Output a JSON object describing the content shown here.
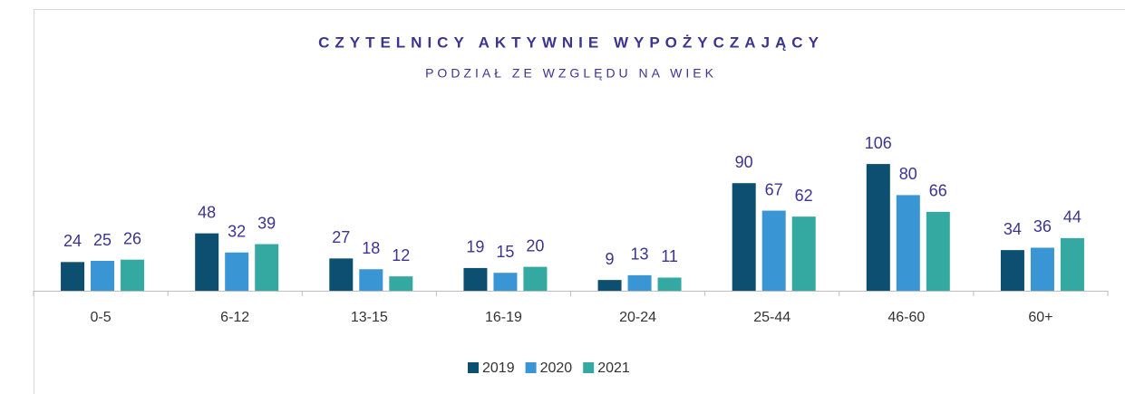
{
  "chart_data": {
    "type": "bar",
    "title": "CZYTELNICY AKTYWNIE WYPOŻYCZAJĄCY",
    "subtitle": "PODZIAŁ ZE WZGLĘDU NA WIEK",
    "categories": [
      "0-5",
      "6-12",
      "13-15",
      "16-19",
      "20-24",
      "25-44",
      "46-60",
      "60+"
    ],
    "series": [
      {
        "name": "2019",
        "color": "#0d4f71",
        "values": [
          24,
          48,
          27,
          19,
          9,
          90,
          106,
          34
        ]
      },
      {
        "name": "2020",
        "color": "#3a95d4",
        "values": [
          25,
          32,
          18,
          15,
          13,
          67,
          80,
          36
        ]
      },
      {
        "name": "2021",
        "color": "#34a9a1",
        "values": [
          26,
          39,
          12,
          20,
          11,
          62,
          66,
          44
        ]
      }
    ],
    "legend": "bottom"
  }
}
